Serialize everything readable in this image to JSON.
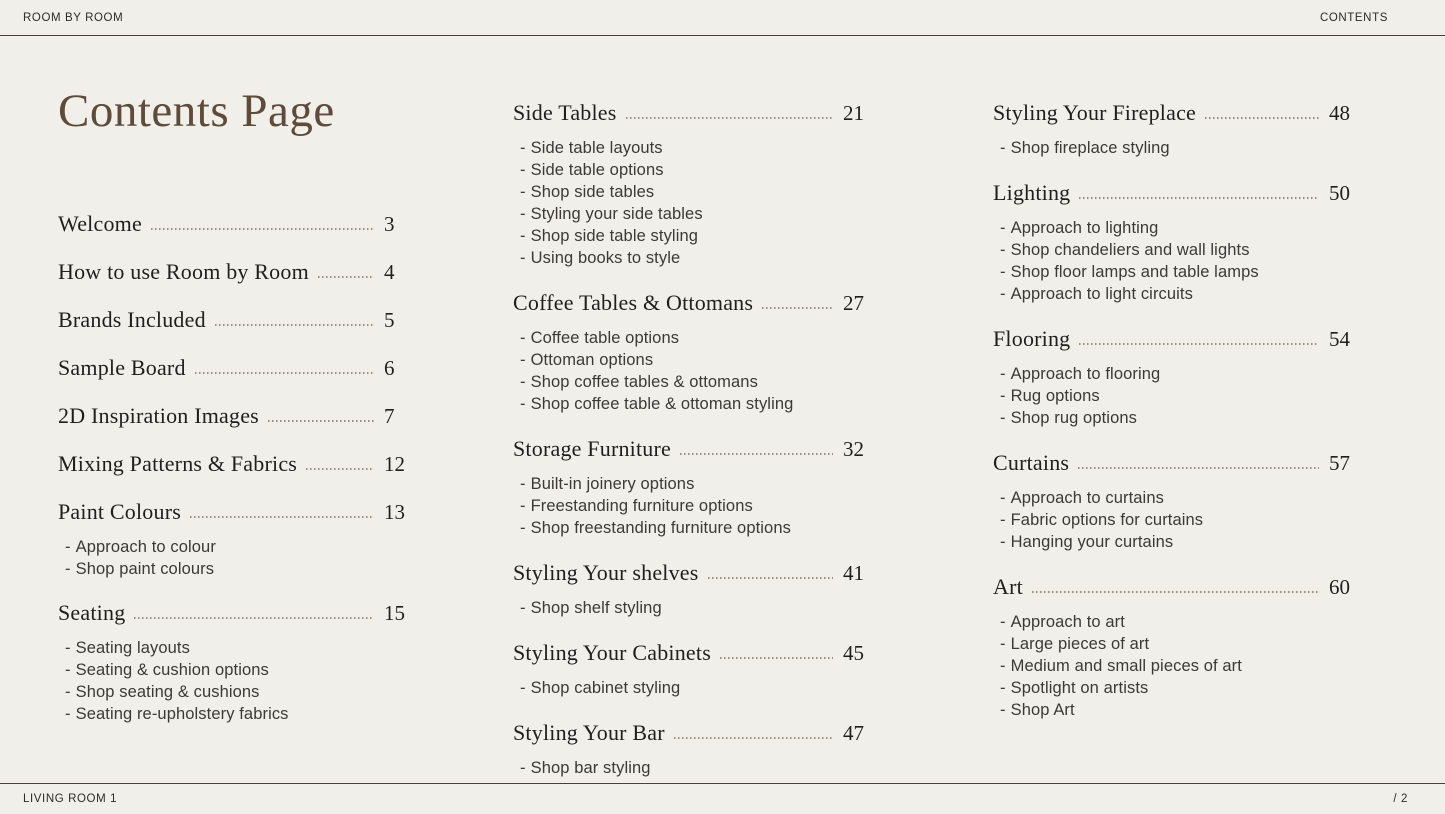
{
  "header": {
    "left_label": "ROOM BY ROOM",
    "right_label": "CONTENTS"
  },
  "footer": {
    "left_label": "LIVING ROOM 1",
    "right_label": "/ 2"
  },
  "title": "Contents Page",
  "bullet": "-",
  "colors": {
    "background": "#f1efe9",
    "title": "#5e4b3a",
    "heading": "#201f1c",
    "subitem": "#3b3a36",
    "leader_dots": "#998e7c",
    "rule": "#45423b"
  },
  "columns": [
    {
      "sections": [
        {
          "title": "Welcome",
          "page": "3",
          "subitems": []
        },
        {
          "title": "How to use Room by Room",
          "page": "4",
          "subitems": []
        },
        {
          "title": "Brands Included",
          "page": "5",
          "subitems": []
        },
        {
          "title": "Sample Board",
          "page": "6",
          "subitems": []
        },
        {
          "title": "2D Inspiration Images",
          "page": "7",
          "subitems": []
        },
        {
          "title": "Mixing Patterns & Fabrics",
          "page": "12",
          "subitems": []
        },
        {
          "title": "Paint Colours",
          "page": "13",
          "subitems": [
            "Approach to colour",
            "Shop paint colours"
          ]
        },
        {
          "title": "Seating",
          "page": "15",
          "subitems": [
            "Seating layouts",
            "Seating & cushion options",
            "Shop seating & cushions",
            "Seating re-upholstery fabrics"
          ]
        }
      ]
    },
    {
      "sections": [
        {
          "title": "Side Tables",
          "page": "21",
          "subitems": [
            "Side table layouts",
            "Side table options",
            "Shop side tables",
            "Styling your side tables",
            "Shop side table styling",
            "Using books to style"
          ]
        },
        {
          "title": "Coffee Tables & Ottomans",
          "page": "27",
          "subitems": [
            "Coffee table options",
            "Ottoman options",
            "Shop coffee tables & ottomans",
            "Shop coffee table & ottoman styling"
          ]
        },
        {
          "title": "Storage Furniture",
          "page": "32",
          "subitems": [
            "Built-in joinery options",
            "Freestanding furniture options",
            "Shop freestanding furniture options"
          ]
        },
        {
          "title": "Styling Your shelves",
          "page": "41",
          "subitems": [
            "Shop shelf styling"
          ]
        },
        {
          "title": "Styling Your Cabinets",
          "page": "45",
          "subitems": [
            "Shop cabinet styling"
          ]
        },
        {
          "title": "Styling Your Bar",
          "page": "47",
          "subitems": [
            "Shop bar styling"
          ]
        }
      ]
    },
    {
      "sections": [
        {
          "title": "Styling Your Fireplace",
          "page": "48",
          "subitems": [
            "Shop fireplace styling"
          ]
        },
        {
          "title": "Lighting",
          "page": "50",
          "subitems": [
            "Approach to lighting",
            "Shop chandeliers and wall lights",
            "Shop floor lamps and table lamps",
            "Approach to light circuits"
          ]
        },
        {
          "title": "Flooring",
          "page": "54",
          "subitems": [
            "Approach to flooring",
            "Rug options",
            "Shop rug options"
          ]
        },
        {
          "title": "Curtains",
          "page": "57",
          "subitems": [
            "Approach to curtains",
            "Fabric options for curtains",
            "Hanging your curtains"
          ]
        },
        {
          "title": "Art",
          "page": "60",
          "subitems": [
            "Approach to art",
            "Large pieces of art",
            "Medium and small pieces of art",
            "Spotlight on artists",
            "Shop Art"
          ]
        }
      ]
    }
  ]
}
